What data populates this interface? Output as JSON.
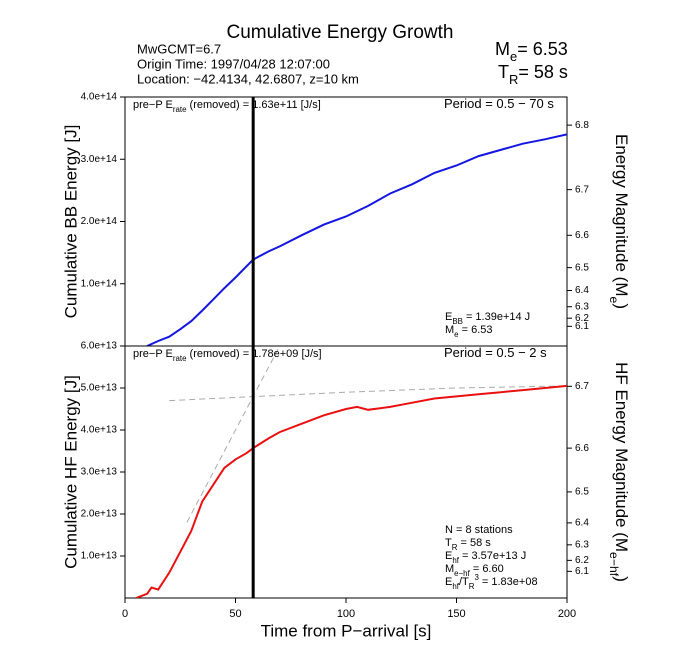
{
  "header": {
    "title": "Cumulative Energy Growth",
    "info": [
      "MwGCMT=6.7",
      "Origin Time: 1997/04/28 12:07:00",
      "Location: −42.4134, 42.6807, z=10 km"
    ],
    "summary": [
      [
        {
          "text": "M"
        },
        {
          "text": "e",
          "sub": true
        },
        {
          "text": "= 6.53"
        }
      ],
      [
        {
          "text": "T"
        },
        {
          "text": "R",
          "sub": true
        },
        {
          "text": "= 58 s"
        }
      ]
    ]
  },
  "chart_data": [
    {
      "type": "line",
      "ylabel": "Cumulative BB Energy [J]",
      "y2label": [
        {
          "text": "Energy Magnitude (M"
        },
        {
          "text": "e",
          "sub": true
        },
        {
          "text": ")"
        }
      ],
      "xlim": [
        0,
        200
      ],
      "ylim": [
        0,
        400000000000000
      ],
      "yticks": [
        {
          "value": 100000000000000,
          "label": "1.0e+14"
        },
        {
          "value": 200000000000000,
          "label": "2.0e+14"
        },
        {
          "value": 300000000000000,
          "label": "3.0e+14"
        },
        {
          "value": 400000000000000,
          "label": "4.0e+14"
        }
      ],
      "y2ticks": [
        6.8,
        6.7,
        6.6,
        6.5,
        6.4,
        6.3,
        6.2,
        6.1
      ],
      "marker_x": 58,
      "x": [
        10,
        15,
        20,
        25,
        30,
        35,
        40,
        45,
        50,
        58,
        65,
        70,
        80,
        90,
        100,
        110,
        120,
        130,
        140,
        150,
        160,
        170,
        180,
        190,
        200
      ],
      "series": [
        {
          "color": "#1515e0",
          "values": [
            0,
            8000000000000,
            15000000000000,
            27000000000000,
            40000000000000,
            57000000000000,
            75000000000000,
            93000000000000,
            110000000000000,
            139000000000000,
            152000000000000,
            160000000000000,
            178000000000000,
            195000000000000,
            208000000000000,
            225000000000000,
            245000000000000,
            260000000000000,
            278000000000000,
            290000000000000,
            305000000000000,
            315000000000000,
            325000000000000,
            332000000000000,
            340000000000000
          ]
        }
      ],
      "annotations": [
        [
          {
            "text": "pre−P E"
          },
          {
            "text": "rate",
            "sub": true
          },
          {
            "text": " (removed) = 1.63e+11 [J/s]"
          }
        ],
        [
          {
            "text": "Period = 0.5 − 70 s"
          }
        ],
        [
          {
            "text": "E"
          },
          {
            "text": "BB",
            "sub": true
          },
          {
            "text": " = 1.39e+14 J"
          }
        ],
        [
          {
            "text": "M"
          },
          {
            "text": "e",
            "sub": true
          },
          {
            "text": " = 6.53"
          }
        ]
      ]
    },
    {
      "type": "line",
      "ylabel": "Cumulative HF Energy [J]",
      "y2label": [
        {
          "text": "HF Energy Magnitude (M"
        },
        {
          "text": "e−hf",
          "sub": true
        },
        {
          "text": ")"
        }
      ],
      "xlabel": "Time from P−arrival [s]",
      "xlim": [
        0,
        200
      ],
      "ylim": [
        0,
        60000000000000
      ],
      "xticks": [
        0,
        50,
        100,
        150,
        200
      ],
      "yticks": [
        {
          "value": 10000000000000,
          "label": "1.0e+13"
        },
        {
          "value": 20000000000000,
          "label": "2.0e+13"
        },
        {
          "value": 30000000000000,
          "label": "3.0e+13"
        },
        {
          "value": 40000000000000,
          "label": "4.0e+13"
        },
        {
          "value": 50000000000000,
          "label": "5.0e+13"
        },
        {
          "value": 60000000000000,
          "label": "6.0e+13"
        }
      ],
      "y2ticks": [
        6.7,
        6.6,
        6.5,
        6.4,
        6.3,
        6.2,
        6.1
      ],
      "marker_x": 58,
      "x": [
        5,
        10,
        12,
        15,
        20,
        25,
        30,
        35,
        40,
        45,
        50,
        55,
        58,
        65,
        70,
        80,
        90,
        100,
        105,
        110,
        120,
        130,
        140,
        150,
        160,
        170,
        180,
        190,
        200
      ],
      "series": [
        {
          "color": "#e81010",
          "values": [
            0,
            1000000000000,
            2500000000000,
            2000000000000,
            6000000000000,
            11000000000000,
            16000000000000,
            23000000000000,
            27000000000000,
            31000000000000,
            33000000000000,
            34500000000000,
            35700000000000,
            38000000000000,
            39500000000000,
            41500000000000,
            43500000000000,
            45000000000000,
            45500000000000,
            44800000000000,
            45500000000000,
            46500000000000,
            47500000000000,
            48000000000000,
            48500000000000,
            49000000000000,
            49500000000000,
            50000000000000,
            50500000000000
          ]
        }
      ],
      "guides": [
        {
          "color": "#aaaaaa",
          "x": [
            20,
            60,
            100,
            150,
            200
          ],
          "values": [
            47000000000000,
            48000000000000,
            49000000000000,
            50000000000000,
            50500000000000
          ]
        },
        {
          "color": "#aaaaaa",
          "x": [
            28,
            70
          ],
          "values": [
            18000000000000,
            60000000000000
          ]
        }
      ],
      "annotations": [
        [
          {
            "text": "pre−P E"
          },
          {
            "text": "rate",
            "sub": true
          },
          {
            "text": " (removed) = 1.78e+09 [J/s]"
          }
        ],
        [
          {
            "text": "Period = 0.5 − 2 s"
          }
        ],
        [
          {
            "text": "N = 8 stations"
          }
        ],
        [
          {
            "text": "T"
          },
          {
            "text": "R",
            "sub": true
          },
          {
            "text": " = 58  s"
          }
        ],
        [
          {
            "text": "E"
          },
          {
            "text": "hf",
            "sub": true
          },
          {
            "text": " = 3.57e+13 J"
          }
        ],
        [
          {
            "text": "M"
          },
          {
            "text": "e−hf",
            "sub": true
          },
          {
            "text": " = 6.60"
          }
        ],
        [
          {
            "text": "E"
          },
          {
            "text": "hf",
            "sub": true
          },
          {
            "text": "/T"
          },
          {
            "text": "R",
            "sub": true
          },
          {
            "text": "3",
            "sup": true
          },
          {
            "text": " =  1.83e+08"
          }
        ]
      ]
    }
  ]
}
